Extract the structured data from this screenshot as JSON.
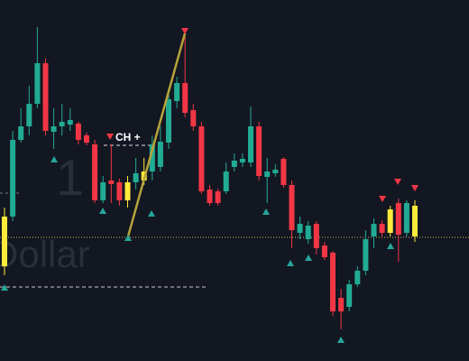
{
  "chart_data": {
    "type": "candlestick",
    "watermark": [
      "1",
      "Dollar"
    ],
    "annotation": "CH +",
    "ylim": [
      0,
      400
    ],
    "open": [
      105,
      160,
      245,
      260,
      285,
      330,
      254,
      260,
      262,
      263,
      250,
      240,
      178,
      200,
      198,
      178,
      198,
      200,
      210,
      215,
      242,
      288,
      308,
      278,
      260,
      190,
      188,
      188,
      215,
      220,
      220,
      260,
      204,
      208,
      224,
      195,
      142,
      135,
      152,
      128,
      120,
      70,
      60,
      85,
      100,
      138,
      152,
      142,
      175,
      142,
      138
    ],
    "high": [
      170,
      255,
      280,
      305,
      370,
      335,
      280,
      285,
      280,
      265,
      253,
      245,
      205,
      240,
      202,
      205,
      225,
      225,
      250,
      260,
      300,
      315,
      360,
      285,
      265,
      195,
      191,
      220,
      230,
      230,
      282,
      265,
      225,
      218,
      226,
      200,
      160,
      155,
      155,
      132,
      122,
      80,
      90,
      105,
      145,
      158,
      156,
      172,
      180,
      178,
      178
    ],
    "low": [
      95,
      155,
      242,
      250,
      280,
      250,
      235,
      250,
      255,
      240,
      239,
      175,
      175,
      175,
      172,
      170,
      190,
      195,
      200,
      210,
      235,
      280,
      270,
      255,
      185,
      172,
      172,
      185,
      210,
      215,
      215,
      200,
      175,
      204,
      192,
      125,
      135,
      130,
      118,
      112,
      50,
      35,
      55,
      82,
      95,
      125,
      138,
      138,
      110,
      138,
      132
    ],
    "close": [
      160,
      245,
      260,
      285,
      330,
      255,
      260,
      265,
      267,
      245,
      242,
      178,
      198,
      196,
      178,
      198,
      208,
      210,
      240,
      243,
      290,
      308,
      275,
      260,
      188,
      175,
      175,
      210,
      222,
      224,
      260,
      205,
      210,
      212,
      195,
      145,
      152,
      150,
      125,
      115,
      55,
      55,
      85,
      100,
      135,
      152,
      142,
      168,
      140,
      175,
      172
    ],
    "colors": [
      "#ffeb3b",
      "#22ab94",
      "#22ab94",
      "#22ab94",
      "#22ab94",
      "#f23645",
      "#22ab94",
      "#22ab94",
      "#22ab94",
      "#f23645",
      "#f23645",
      "#f23645",
      "#22ab94",
      "#f23645",
      "#f23645",
      "#ffeb3b",
      "#22ab94",
      "#ffeb3b",
      "#22ab94",
      "#22ab94",
      "#22ab94",
      "#22ab94",
      "#f23645",
      "#f23645",
      "#f23645",
      "#f23645",
      "#f23645",
      "#22ab94",
      "#22ab94",
      "#22ab94",
      "#22ab94",
      "#f23645",
      "#22ab94",
      "#22ab94",
      "#f23645",
      "#f23645",
      "#22ab94",
      "#22ab94",
      "#f23645",
      "#f23645",
      "#f23645",
      "#f23645",
      "#22ab94",
      "#22ab94",
      "#22ab94",
      "#22ab94",
      "#f23645",
      "#ffeb3b",
      "#f23645",
      "#22ab94",
      "#ffeb3b"
    ]
  }
}
